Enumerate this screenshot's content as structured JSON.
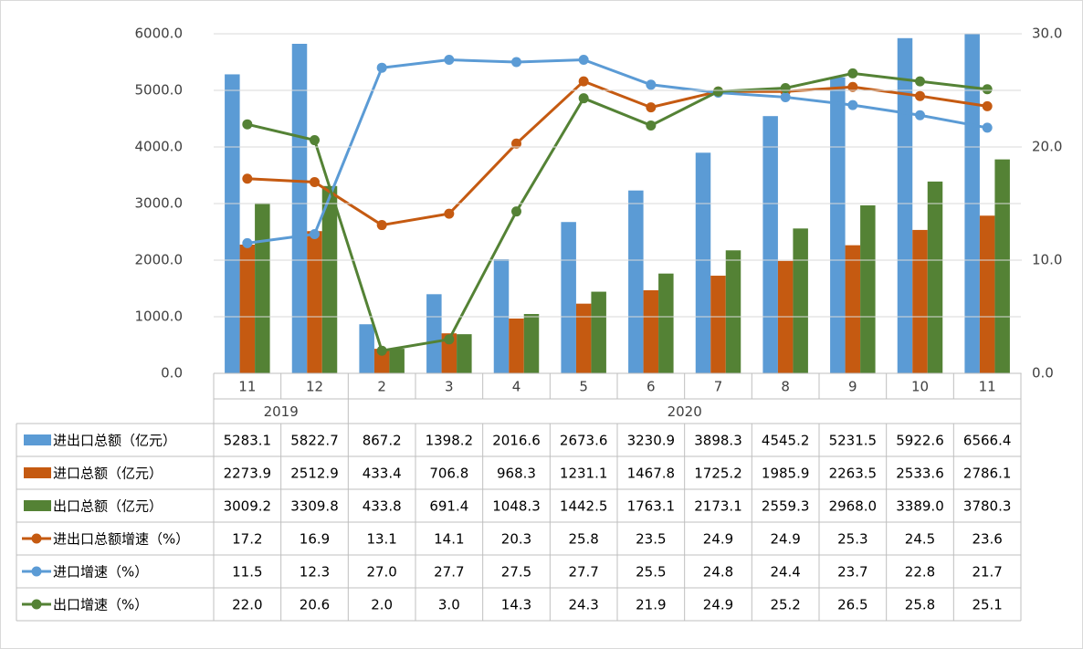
{
  "chart_data": {
    "type": "bar",
    "categories": [
      "11",
      "12",
      "2",
      "3",
      "4",
      "5",
      "6",
      "7",
      "8",
      "9",
      "10",
      "11"
    ],
    "groups": [
      {
        "label": "2019",
        "count": 2
      },
      {
        "label": "2020",
        "count": 10
      }
    ],
    "ylim": [
      0,
      6000
    ],
    "yticks": [
      {
        "value": 0,
        "label": "0.0"
      },
      {
        "value": 1000,
        "label": "1000.0"
      },
      {
        "value": 2000,
        "label": "2000.0"
      },
      {
        "value": 3000,
        "label": "3000.0"
      },
      {
        "value": 4000,
        "label": "4000.0"
      },
      {
        "value": 5000,
        "label": "5000.0"
      },
      {
        "value": 6000,
        "label": "6000.0"
      }
    ],
    "y2lim": [
      0,
      30
    ],
    "y2ticks": [
      {
        "value": 0,
        "label": "0.0"
      },
      {
        "value": 10,
        "label": "10.0"
      },
      {
        "value": 20,
        "label": "20.0"
      },
      {
        "value": 30,
        "label": "30.0"
      }
    ],
    "grid": true,
    "series": [
      {
        "name": "进出口总额（亿元）",
        "type": "bar",
        "color": "#5b9bd5",
        "values": [
          5283.1,
          5822.7,
          867.2,
          1398.2,
          2016.6,
          2673.6,
          3230.9,
          3898.3,
          4545.2,
          5231.5,
          5922.6,
          6566.4
        ],
        "value_labels": [
          "5283.1",
          "5822.7",
          "867.2",
          "1398.2",
          "2016.6",
          "2673.6",
          "3230.9",
          "3898.3",
          "4545.2",
          "5231.5",
          "5922.6",
          "6566.4"
        ]
      },
      {
        "name": "进口总额（亿元）",
        "type": "bar",
        "color": "#c55a11",
        "values": [
          2273.9,
          2512.9,
          433.4,
          706.8,
          968.3,
          1231.1,
          1467.8,
          1725.2,
          1985.9,
          2263.5,
          2533.6,
          2786.1
        ],
        "value_labels": [
          "2273.9",
          "2512.9",
          "433.4",
          "706.8",
          "968.3",
          "1231.1",
          "1467.8",
          "1725.2",
          "1985.9",
          "2263.5",
          "2533.6",
          "2786.1"
        ]
      },
      {
        "name": "出口总额（亿元）",
        "type": "bar",
        "color": "#548235",
        "values": [
          3009.2,
          3309.8,
          433.8,
          691.4,
          1048.3,
          1442.5,
          1763.1,
          2173.1,
          2559.3,
          2968.0,
          3389.0,
          3780.3
        ],
        "value_labels": [
          "3009.2",
          "3309.8",
          "433.8",
          "691.4",
          "1048.3",
          "1442.5",
          "1763.1",
          "2173.1",
          "2559.3",
          "2968.0",
          "3389.0",
          "3780.3"
        ]
      },
      {
        "name": "进出口总额增速（%）",
        "type": "line",
        "axis": "y2",
        "color": "#c55a11",
        "values": [
          17.2,
          16.9,
          13.1,
          14.1,
          20.3,
          25.8,
          23.5,
          24.9,
          24.9,
          25.3,
          24.5,
          23.6
        ],
        "value_labels": [
          "17.2",
          "16.9",
          "13.1",
          "14.1",
          "20.3",
          "25.8",
          "23.5",
          "24.9",
          "24.9",
          "25.3",
          "24.5",
          "23.6"
        ]
      },
      {
        "name": "进口增速（%）",
        "type": "line",
        "axis": "y2",
        "color": "#5b9bd5",
        "values": [
          11.5,
          12.3,
          27.0,
          27.7,
          27.5,
          27.7,
          25.5,
          24.8,
          24.4,
          23.7,
          22.8,
          21.7
        ],
        "value_labels": [
          "11.5",
          "12.3",
          "27.0",
          "27.7",
          "27.5",
          "27.7",
          "25.5",
          "24.8",
          "24.4",
          "23.7",
          "22.8",
          "21.7"
        ]
      },
      {
        "name": "出口增速（%）",
        "type": "line",
        "axis": "y2",
        "color": "#548235",
        "values": [
          22.0,
          20.6,
          2.0,
          3.0,
          14.3,
          24.3,
          21.9,
          24.9,
          25.2,
          26.5,
          25.8,
          25.1
        ],
        "value_labels": [
          "22.0",
          "20.6",
          "2.0",
          "3.0",
          "14.3",
          "24.3",
          "21.9",
          "24.9",
          "25.2",
          "26.5",
          "25.8",
          "25.1"
        ]
      }
    ]
  }
}
